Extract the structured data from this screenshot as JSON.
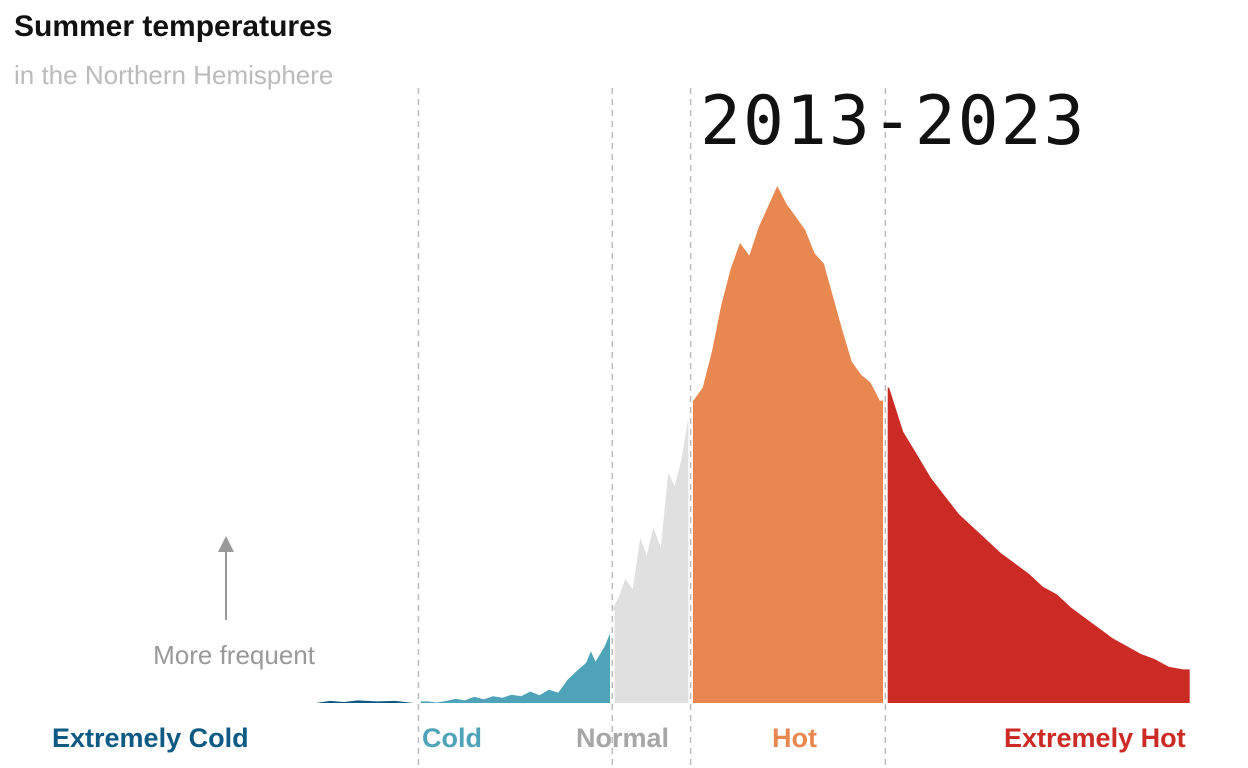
{
  "chart_data": {
    "type": "area",
    "title": "Summer temperatures",
    "subtitle": "in the Northern Hemisphere",
    "period": "2013-2023",
    "ylabel": "More frequent",
    "xlim": [
      0,
      100
    ],
    "ylim": [
      0,
      100
    ],
    "grid": false,
    "dividers": [
      17,
      37.8,
      46.2,
      67.1
    ],
    "categories": [
      {
        "label": "Extremely Cold",
        "color": "#0e5a84",
        "range": [
          0,
          17
        ]
      },
      {
        "label": "Cold",
        "color": "#4fa3b8",
        "range": [
          17,
          37.8
        ]
      },
      {
        "label": "Normal",
        "color": "#a6a6a6",
        "fill": "#e0e0e0",
        "range": [
          37.8,
          46.2
        ]
      },
      {
        "label": "Hot",
        "color": "#e8874f",
        "range": [
          46.2,
          67.1
        ]
      },
      {
        "label": "Extremely Hot",
        "color": "#cc2a24",
        "range": [
          67.1,
          100
        ]
      }
    ],
    "series": [
      {
        "category": "Extremely Cold",
        "x": [
          6,
          7.5,
          9,
          10.5,
          12.5,
          14.5,
          16.5
        ],
        "values": [
          0,
          0.4,
          0.2,
          0.5,
          0.3,
          0.4,
          0
        ]
      },
      {
        "category": "Cold",
        "x": [
          18,
          19,
          20,
          21,
          22,
          23,
          24,
          25,
          26,
          27,
          28,
          29,
          30,
          31,
          32,
          33,
          34,
          35,
          35.5,
          36,
          36.5,
          37,
          37.5
        ],
        "values": [
          0.3,
          0.1,
          0.4,
          0.8,
          0.5,
          1.2,
          0.7,
          1.3,
          1.0,
          1.6,
          1.3,
          2.2,
          1.5,
          2.6,
          2.0,
          4.5,
          6.2,
          7.8,
          10.0,
          8.0,
          9.5,
          11.0,
          13.2
        ]
      },
      {
        "category": "Normal",
        "x": [
          37.8,
          38.5,
          39.2,
          40,
          40.8,
          41.5,
          42.2,
          43,
          43.8,
          44.5,
          45.2,
          46
        ],
        "values": [
          18.0,
          20.5,
          24.0,
          22.0,
          32.0,
          28.5,
          34.0,
          30.0,
          44.5,
          42.0,
          47.0,
          55.5
        ]
      },
      {
        "category": "Hot",
        "x": [
          46.5,
          47.5,
          48.5,
          49.5,
          50.5,
          51.5,
          52.5,
          53.5,
          54.5,
          55.5,
          56.5,
          57.5,
          58.5,
          59.5,
          60.5,
          61.5,
          62.5,
          63.5,
          64.5,
          65.5,
          66.5
        ],
        "values": [
          58.5,
          61.0,
          68.0,
          77.0,
          84.0,
          89.0,
          86.5,
          92.0,
          96.0,
          100.0,
          96.5,
          94.0,
          91.5,
          87.0,
          85.0,
          78.5,
          72.0,
          66.0,
          63.5,
          62.0,
          58.5
        ]
      },
      {
        "category": "Extremely Hot",
        "x": [
          67.5,
          69,
          70.5,
          72,
          73.5,
          75,
          76.5,
          78,
          79.5,
          81,
          82.5,
          84,
          85.5,
          87,
          88.5,
          90,
          91.5,
          93,
          94.5,
          96,
          97.5,
          99
        ],
        "values": [
          61.0,
          52.5,
          48.0,
          43.5,
          40.0,
          36.5,
          34.0,
          31.5,
          29.0,
          27.0,
          25.0,
          22.5,
          21.0,
          18.5,
          16.5,
          14.5,
          12.5,
          11.0,
          9.5,
          8.5,
          7.0,
          6.5
        ]
      }
    ]
  }
}
